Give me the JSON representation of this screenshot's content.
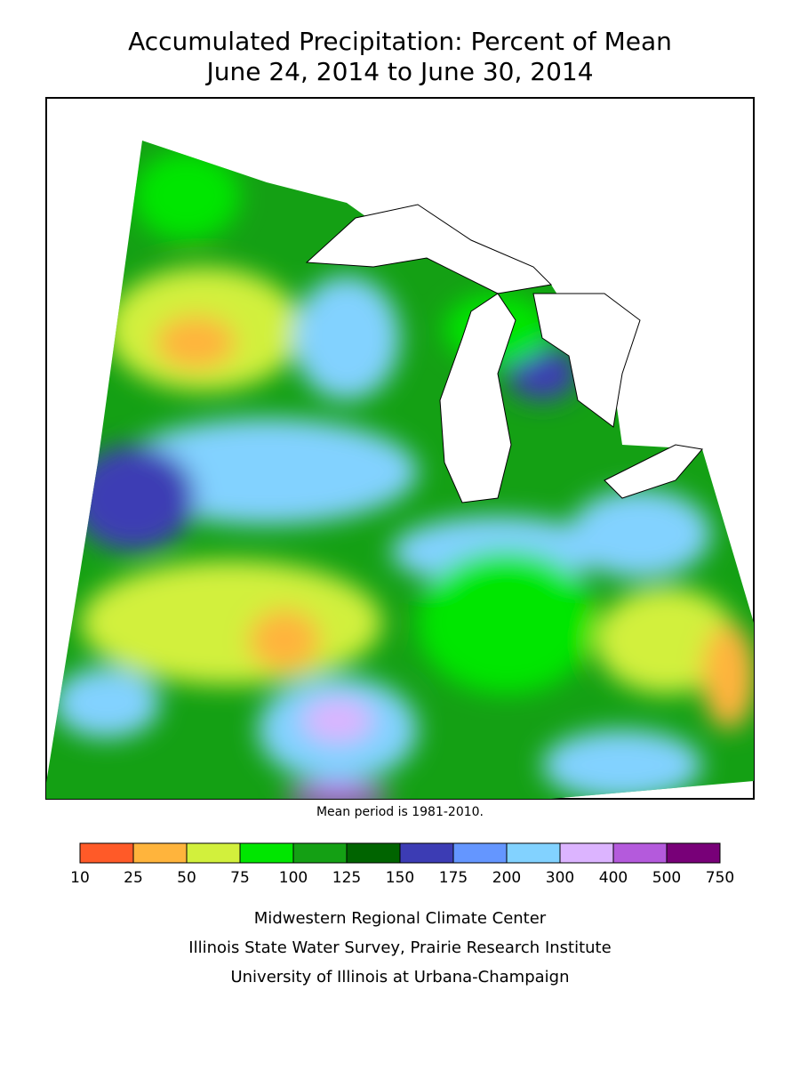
{
  "title": "Accumulated Precipitation: Percent of Mean",
  "subtitle": "June 24, 2014 to June 30, 2014",
  "note": "Mean period is 1981-2010.",
  "legend": {
    "ticks": [
      10,
      25,
      50,
      75,
      100,
      125,
      150,
      175,
      200,
      300,
      400,
      500,
      750
    ],
    "colors": [
      "#ff5a28",
      "#ffb43c",
      "#d2f03c",
      "#00e600",
      "#14a014",
      "#006400",
      "#3c3cb4",
      "#6496ff",
      "#82d2ff",
      "#dcb4ff",
      "#b45adc",
      "#780078"
    ]
  },
  "credits": [
    "Midwestern Regional Climate Center",
    "Illinois State Water Survey, Prairie Research Institute",
    "University of Illinois at Urbana-Champaign"
  ]
}
